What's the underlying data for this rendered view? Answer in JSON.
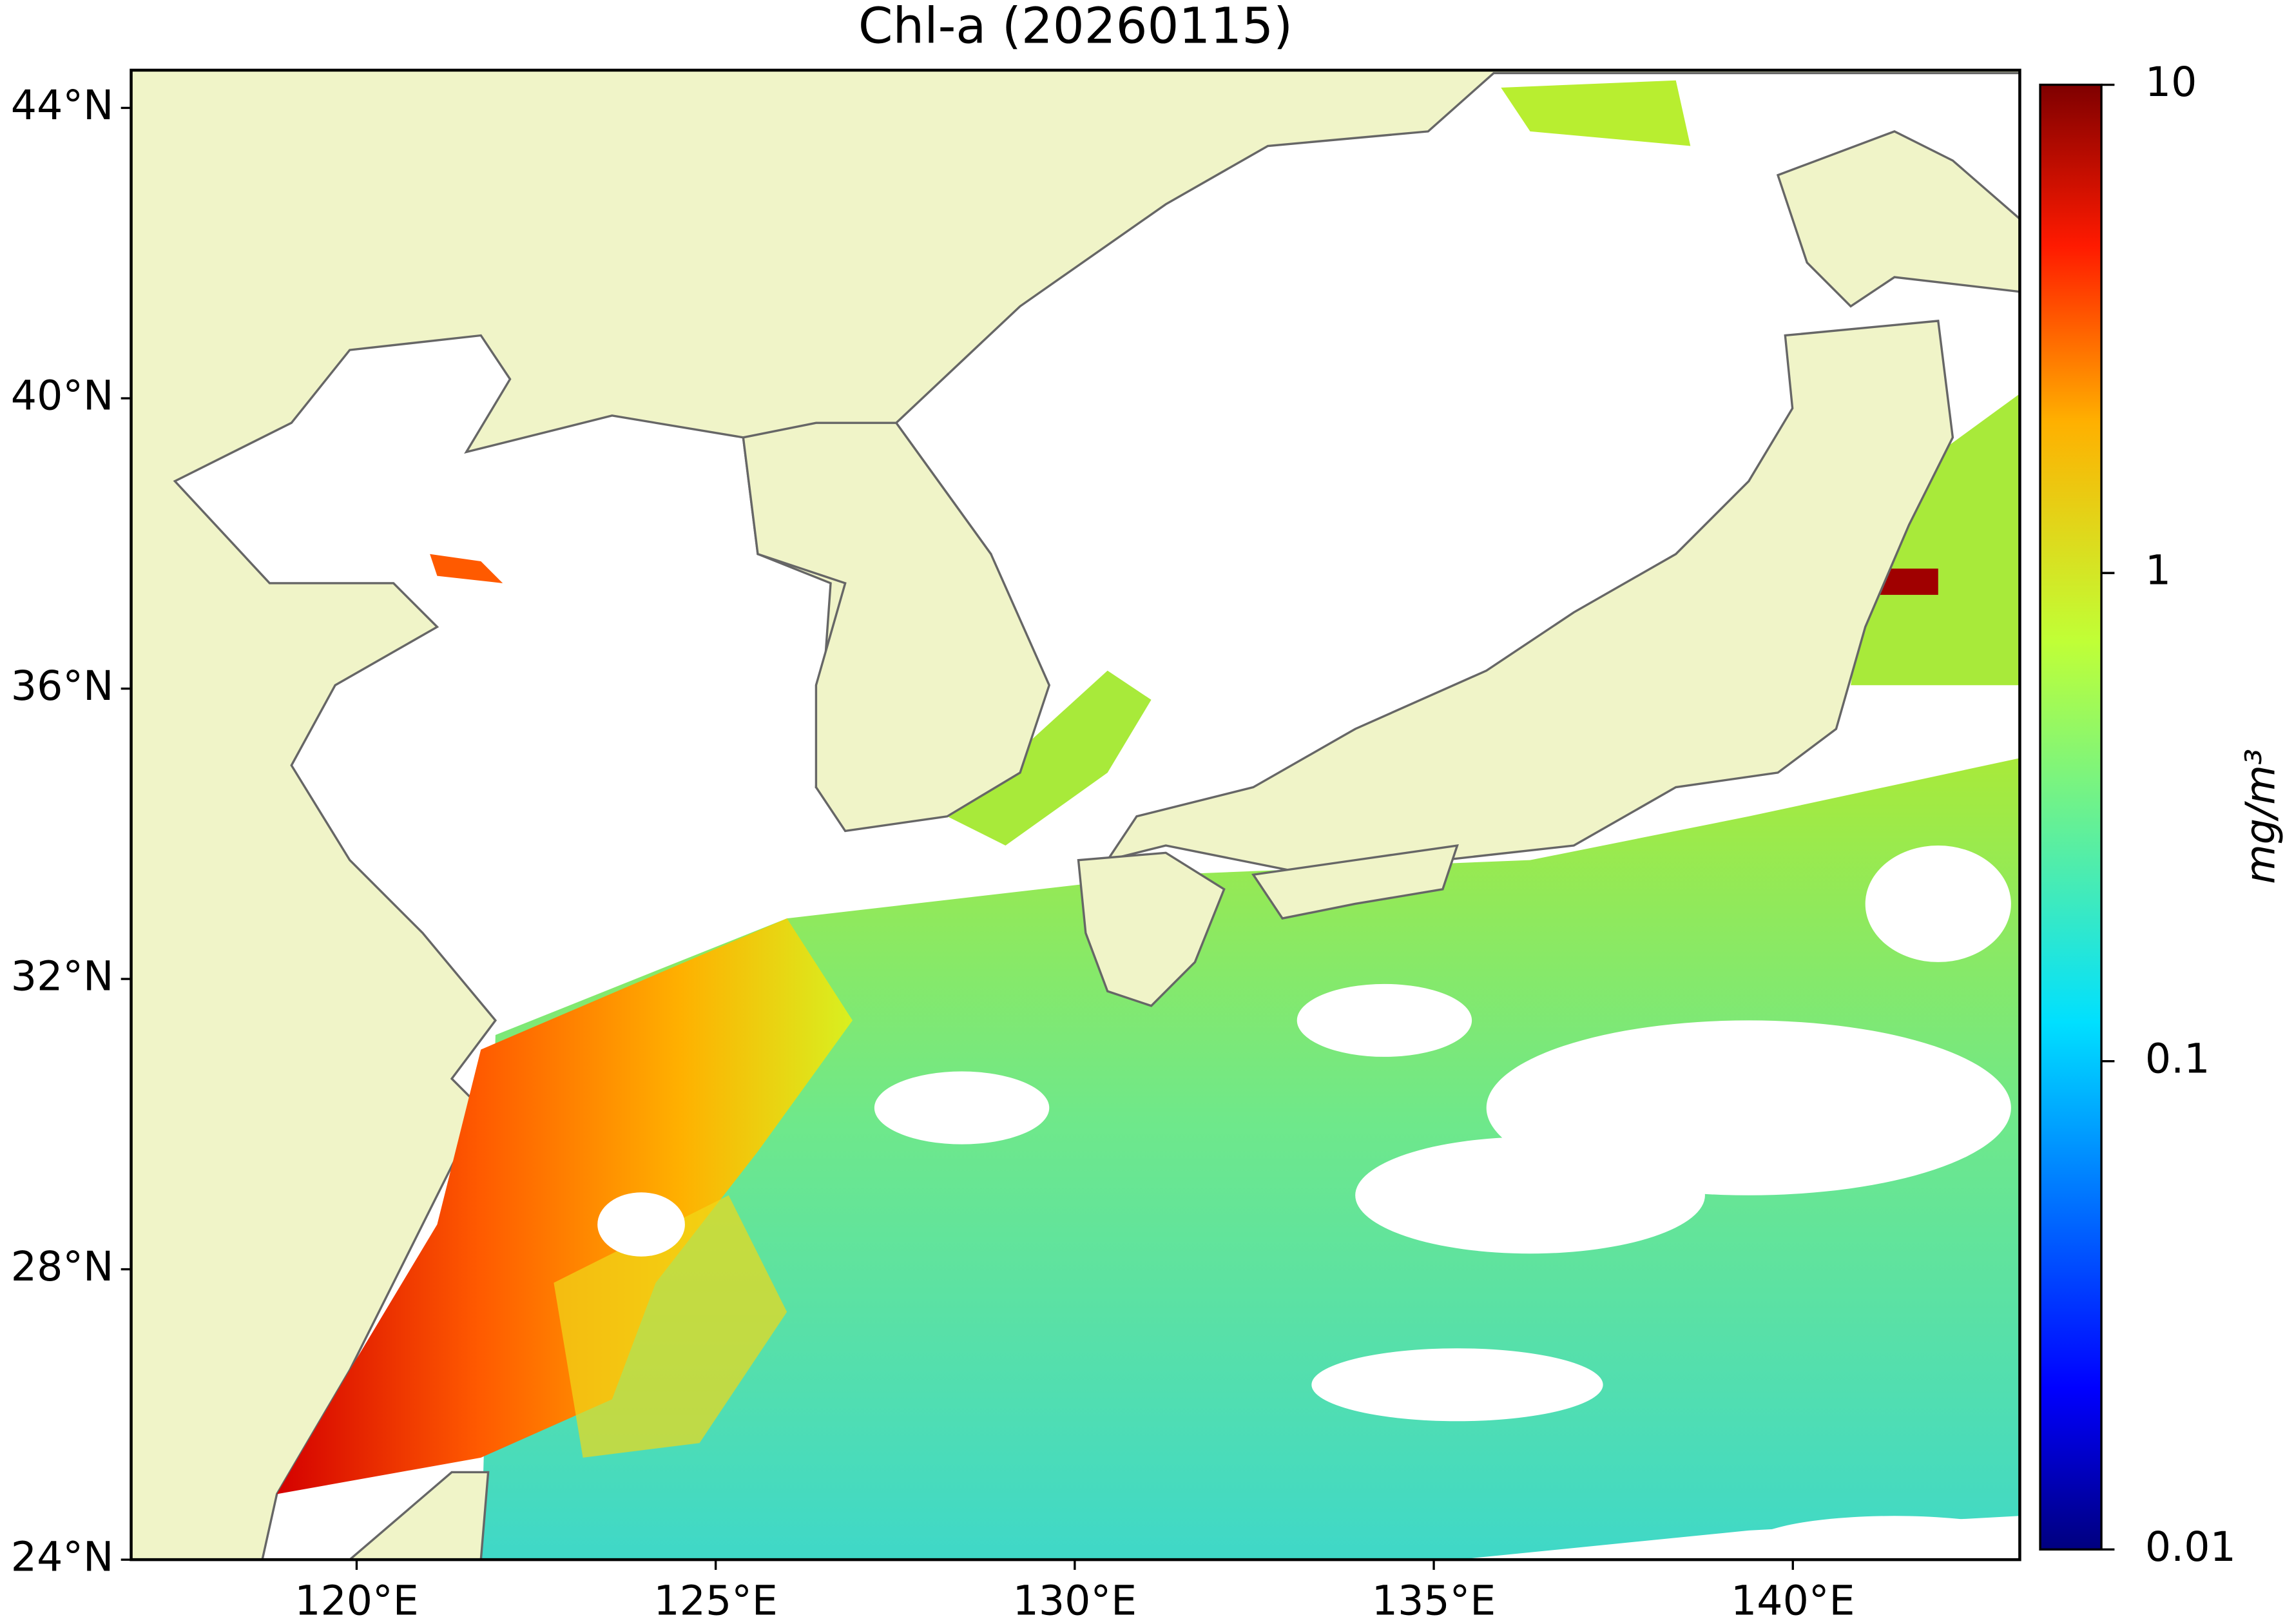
{
  "title": "Chl-a (20260115)",
  "map": {
    "lonlim": [
      116.86,
      143.16
    ],
    "latlim": [
      24,
      44.52
    ],
    "lat_ticks": [
      {
        "value": 24,
        "label": "24°N"
      },
      {
        "value": 28,
        "label": "28°N"
      },
      {
        "value": 32,
        "label": "32°N"
      },
      {
        "value": 36,
        "label": "36°N"
      },
      {
        "value": 40,
        "label": "40°N"
      },
      {
        "value": 44,
        "label": "44°N"
      }
    ],
    "lon_ticks": [
      {
        "value": 120,
        "label": "120°E"
      },
      {
        "value": 125,
        "label": "125°E"
      },
      {
        "value": 130,
        "label": "130°E"
      },
      {
        "value": 135,
        "label": "135°E"
      },
      {
        "value": 140,
        "label": "140°E"
      }
    ]
  },
  "colorbar": {
    "scale": "log",
    "lim": [
      0.01,
      10
    ],
    "ticks": [
      0.01,
      0.1,
      1,
      10
    ],
    "label": "mg/m³",
    "colormap": "jet"
  }
}
